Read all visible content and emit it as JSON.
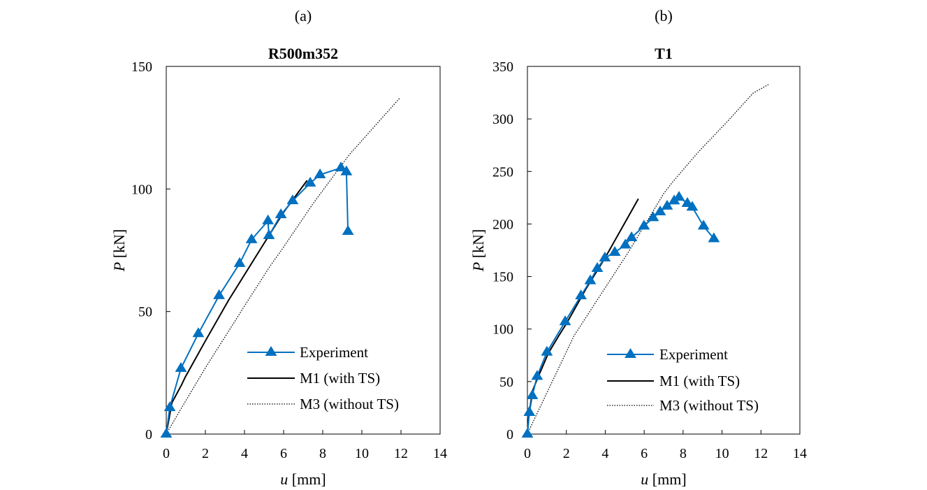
{
  "chart_data": [
    {
      "type": "line",
      "panel_label": "(a)",
      "title": "R500m352",
      "xlabel_var": "u",
      "xlabel_unit": " [mm]",
      "ylabel_var": "P",
      "ylabel_unit": " [kN]",
      "xlim": [
        0,
        14
      ],
      "ylim": [
        0,
        150
      ],
      "xticks": [
        0,
        2,
        4,
        6,
        8,
        10,
        12,
        14
      ],
      "yticks": [
        0,
        50,
        100,
        150
      ],
      "grid": false,
      "legend_position": "bottom-right",
      "series": [
        {
          "name": "Experiment",
          "style": "line-triangle-markers",
          "color": "#0070C0",
          "x": [
            0,
            0.18,
            0.75,
            1.64,
            2.7,
            3.75,
            4.36,
            5.2,
            5.25,
            5.86,
            6.46,
            7.36,
            7.86,
            8.93,
            9.21,
            9.29
          ],
          "y": [
            0,
            10.8,
            26.8,
            41.0,
            56.5,
            69.6,
            79.3,
            87.0,
            81.0,
            89.5,
            95.2,
            102.4,
            105.8,
            108.6,
            107.0,
            82.7
          ]
        },
        {
          "name": "M1 (with TS)",
          "style": "solid",
          "color": "#000000",
          "x": [
            0,
            0.29,
            0.79,
            0.96,
            2.0,
            3.18,
            4.96,
            6.0,
            7.2
          ],
          "y": [
            0,
            12.8,
            20.2,
            23.1,
            38.0,
            54.5,
            77.3,
            90.5,
            103.5
          ]
        },
        {
          "name": "M3 (without TS)",
          "style": "dotted",
          "color": "#000000",
          "x": [
            0,
            0.79,
            2.0,
            4.18,
            5.32,
            5.89,
            7.5,
            9.36,
            11.93
          ],
          "y": [
            0,
            10.8,
            27.0,
            54.5,
            68.7,
            75.0,
            94.0,
            114.0,
            137.0
          ]
        }
      ]
    },
    {
      "type": "line",
      "panel_label": "(b)",
      "title": "T1",
      "xlabel_var": "u",
      "xlabel_unit": " [mm]",
      "ylabel_var": "P",
      "ylabel_unit": " [kN]",
      "xlim": [
        0,
        14
      ],
      "ylim": [
        0,
        350
      ],
      "xticks": [
        0,
        2,
        4,
        6,
        8,
        10,
        12,
        14
      ],
      "yticks": [
        0,
        50,
        100,
        150,
        200,
        250,
        300,
        350
      ],
      "grid": false,
      "legend_position": "bottom-right",
      "series": [
        {
          "name": "Experiment",
          "style": "line-triangle-markers",
          "color": "#0070C0",
          "x": [
            0,
            0.1,
            0.25,
            0.5,
            1.0,
            1.94,
            2.75,
            3.23,
            3.59,
            3.98,
            4.49,
            5.03,
            5.35,
            5.99,
            6.46,
            6.82,
            7.18,
            7.54,
            7.79,
            8.22,
            8.47,
            9.05,
            9.58
          ],
          "y": [
            0,
            20.6,
            36.6,
            55.0,
            78.0,
            107.0,
            131.7,
            146.0,
            157.7,
            167.7,
            173.0,
            180.0,
            187.0,
            198.0,
            206.0,
            211.6,
            217.0,
            222.0,
            225.5,
            219.6,
            216.0,
            198.0,
            186.0
          ]
        },
        {
          "name": "M1 (with TS)",
          "style": "solid",
          "color": "#000000",
          "x": [
            0,
            0.07,
            0.25,
            0.54,
            1.08,
            1.62,
            2.0,
            3.0,
            4.0,
            5.7
          ],
          "y": [
            0,
            17.3,
            40.6,
            53.9,
            77.2,
            93.8,
            105.0,
            138.0,
            168.0,
            224.0
          ]
        },
        {
          "name": "M3 (without TS)",
          "style": "dotted",
          "color": "#000000",
          "x": [
            0,
            0.18,
            2.4,
            5.2,
            7.0,
            7.47,
            8.8,
            10.3,
            11.6,
            12.38
          ],
          "y": [
            0,
            7.3,
            93.8,
            173.6,
            228.9,
            240.2,
            268.8,
            298.0,
            324.6,
            332.7
          ]
        }
      ]
    }
  ]
}
